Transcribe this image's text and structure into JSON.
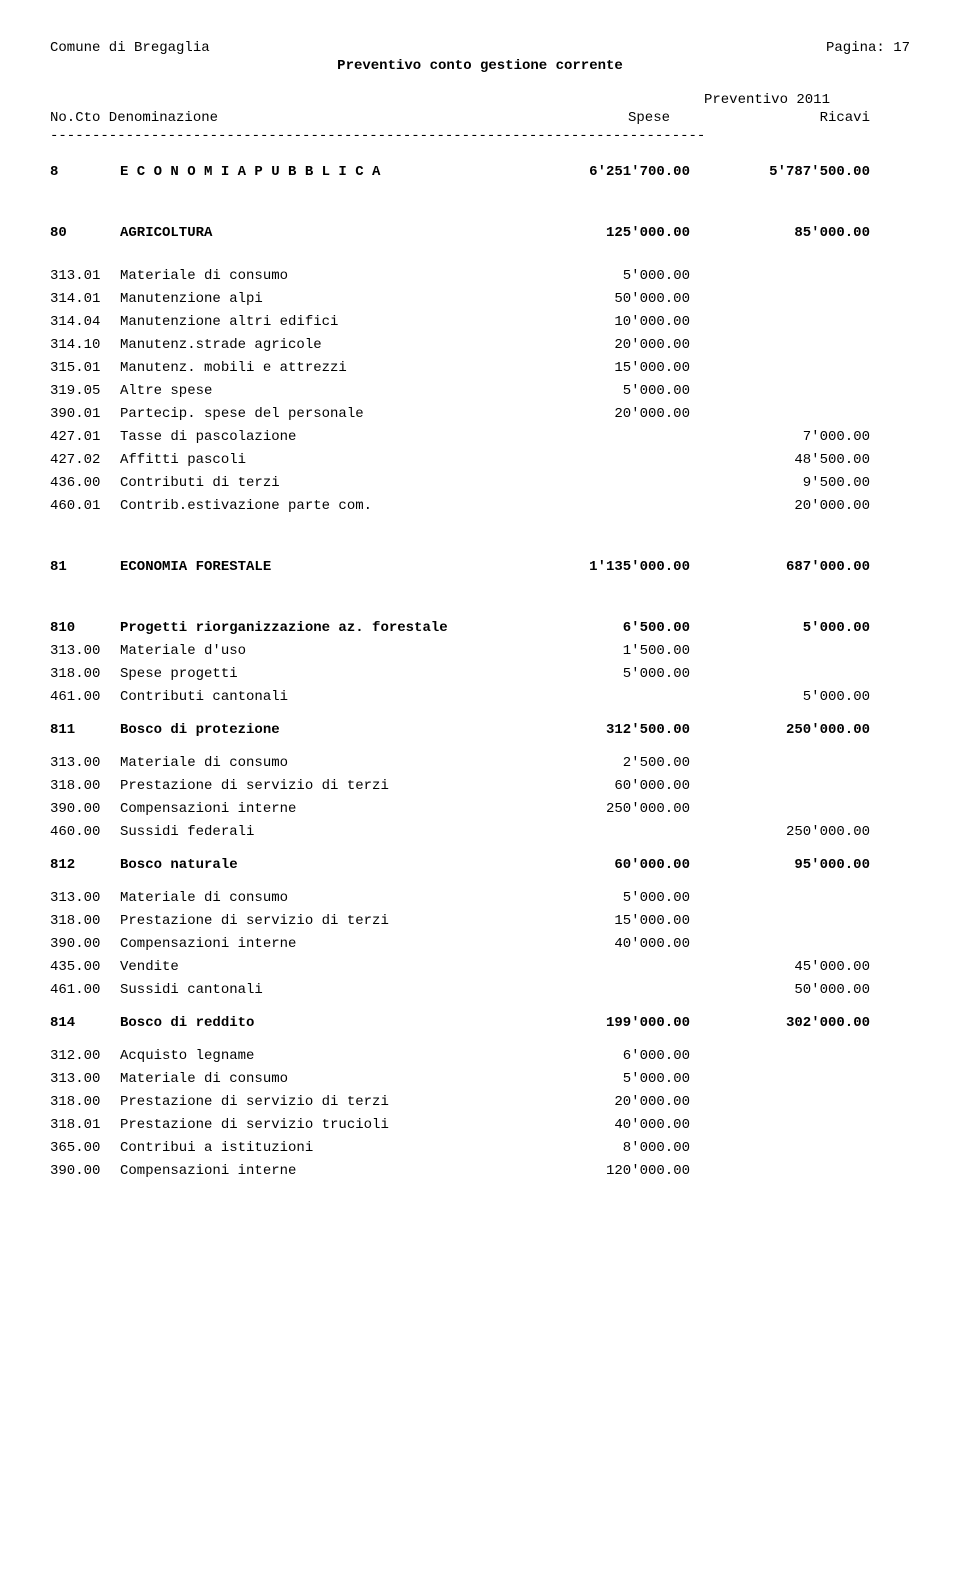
{
  "header": {
    "left": "Comune di Bregaglia",
    "right": "Pagina: 17",
    "subtitle": "Preventivo conto gestione corrente",
    "year_line": "Preventivo  2011",
    "col_left": "No.Cto  Denominazione",
    "col_spese": "Spese",
    "col_ricavi": "Ricavi",
    "divider": "------------------------------------------------------------------------------"
  },
  "rows": [
    {
      "code": "8",
      "desc": "E C O N O M I A   P U B B L I C A",
      "v1": "6'251'700.00",
      "v2": "5'787'500.00",
      "bold": true,
      "gap": ""
    },
    {
      "code": "80",
      "desc": "AGRICOLTURA",
      "v1": "125'000.00",
      "v2": "85'000.00",
      "bold": true,
      "gap": "gap-large"
    },
    {
      "code": "313.01",
      "desc": "Materiale di consumo",
      "v1": "5'000.00",
      "v2": "",
      "bold": false,
      "gap": "gap-med"
    },
    {
      "code": "314.01",
      "desc": "Manutenzione alpi",
      "v1": "50'000.00",
      "v2": "",
      "bold": false,
      "gap": ""
    },
    {
      "code": "314.04",
      "desc": "Manutenzione altri edifici",
      "v1": "10'000.00",
      "v2": "",
      "bold": false,
      "gap": ""
    },
    {
      "code": "314.10",
      "desc": "Manutenz.strade agricole",
      "v1": "20'000.00",
      "v2": "",
      "bold": false,
      "gap": ""
    },
    {
      "code": "315.01",
      "desc": "Manutenz. mobili e attrezzi",
      "v1": "15'000.00",
      "v2": "",
      "bold": false,
      "gap": ""
    },
    {
      "code": "319.05",
      "desc": "Altre spese",
      "v1": "5'000.00",
      "v2": "",
      "bold": false,
      "gap": ""
    },
    {
      "code": "390.01",
      "desc": "Partecip. spese del personale",
      "v1": "20'000.00",
      "v2": "",
      "bold": false,
      "gap": ""
    },
    {
      "code": "427.01",
      "desc": "Tasse di pascolazione",
      "v1": "",
      "v2": "7'000.00",
      "bold": false,
      "gap": ""
    },
    {
      "code": "427.02",
      "desc": "Affitti pascoli",
      "v1": "",
      "v2": "48'500.00",
      "bold": false,
      "gap": ""
    },
    {
      "code": "436.00",
      "desc": "Contributi di terzi",
      "v1": "",
      "v2": "9'500.00",
      "bold": false,
      "gap": ""
    },
    {
      "code": "460.01",
      "desc": "Contrib.estivazione parte com.",
      "v1": "",
      "v2": "20'000.00",
      "bold": false,
      "gap": ""
    },
    {
      "code": "81",
      "desc": "ECONOMIA FORESTALE",
      "v1": "1'135'000.00",
      "v2": "687'000.00",
      "bold": true,
      "gap": "gap-large"
    },
    {
      "code": "810",
      "desc": "Progetti riorganizzazione az. forestale",
      "v1": "6'500.00",
      "v2": "5'000.00",
      "bold": true,
      "gap": "gap-large"
    },
    {
      "code": "313.00",
      "desc": "Materiale d'uso",
      "v1": "1'500.00",
      "v2": "",
      "bold": false,
      "gap": ""
    },
    {
      "code": "318.00",
      "desc": "Spese progetti",
      "v1": "5'000.00",
      "v2": "",
      "bold": false,
      "gap": ""
    },
    {
      "code": "461.00",
      "desc": "Contributi cantonali",
      "v1": "",
      "v2": "5'000.00",
      "bold": false,
      "gap": ""
    },
    {
      "code": "811",
      "desc": "Bosco di protezione",
      "v1": "312'500.00",
      "v2": "250'000.00",
      "bold": true,
      "gap": "gap-small"
    },
    {
      "code": "313.00",
      "desc": "Materiale di consumo",
      "v1": "2'500.00",
      "v2": "",
      "bold": false,
      "gap": "gap-small"
    },
    {
      "code": "318.00",
      "desc": "Prestazione di servizio di terzi",
      "v1": "60'000.00",
      "v2": "",
      "bold": false,
      "gap": ""
    },
    {
      "code": "390.00",
      "desc": "Compensazioni interne",
      "v1": "250'000.00",
      "v2": "",
      "bold": false,
      "gap": ""
    },
    {
      "code": "460.00",
      "desc": "Sussidi federali",
      "v1": "",
      "v2": "250'000.00",
      "bold": false,
      "gap": ""
    },
    {
      "code": "812",
      "desc": "Bosco naturale",
      "v1": "60'000.00",
      "v2": "95'000.00",
      "bold": true,
      "gap": "gap-small"
    },
    {
      "code": "313.00",
      "desc": "Materiale di consumo",
      "v1": "5'000.00",
      "v2": "",
      "bold": false,
      "gap": "gap-small"
    },
    {
      "code": "318.00",
      "desc": "Prestazione di servizio di terzi",
      "v1": "15'000.00",
      "v2": "",
      "bold": false,
      "gap": ""
    },
    {
      "code": "390.00",
      "desc": "Compensazioni interne",
      "v1": "40'000.00",
      "v2": "",
      "bold": false,
      "gap": ""
    },
    {
      "code": "435.00",
      "desc": "Vendite",
      "v1": "",
      "v2": "45'000.00",
      "bold": false,
      "gap": ""
    },
    {
      "code": "461.00",
      "desc": "Sussidi cantonali",
      "v1": "",
      "v2": "50'000.00",
      "bold": false,
      "gap": ""
    },
    {
      "code": "814",
      "desc": "Bosco di reddito",
      "v1": "199'000.00",
      "v2": "302'000.00",
      "bold": true,
      "gap": "gap-small"
    },
    {
      "code": "312.00",
      "desc": "Acquisto legname",
      "v1": "6'000.00",
      "v2": "",
      "bold": false,
      "gap": "gap-small"
    },
    {
      "code": "313.00",
      "desc": "Materiale di consumo",
      "v1": "5'000.00",
      "v2": "",
      "bold": false,
      "gap": ""
    },
    {
      "code": "318.00",
      "desc": "Prestazione di servizio di terzi",
      "v1": "20'000.00",
      "v2": "",
      "bold": false,
      "gap": ""
    },
    {
      "code": "318.01",
      "desc": "Prestazione di servizio trucioli",
      "v1": "40'000.00",
      "v2": "",
      "bold": false,
      "gap": ""
    },
    {
      "code": "365.00",
      "desc": "Contribui a istituzioni",
      "v1": "8'000.00",
      "v2": "",
      "bold": false,
      "gap": ""
    },
    {
      "code": "390.00",
      "desc": "Compensazioni interne",
      "v1": "120'000.00",
      "v2": "",
      "bold": false,
      "gap": ""
    }
  ]
}
